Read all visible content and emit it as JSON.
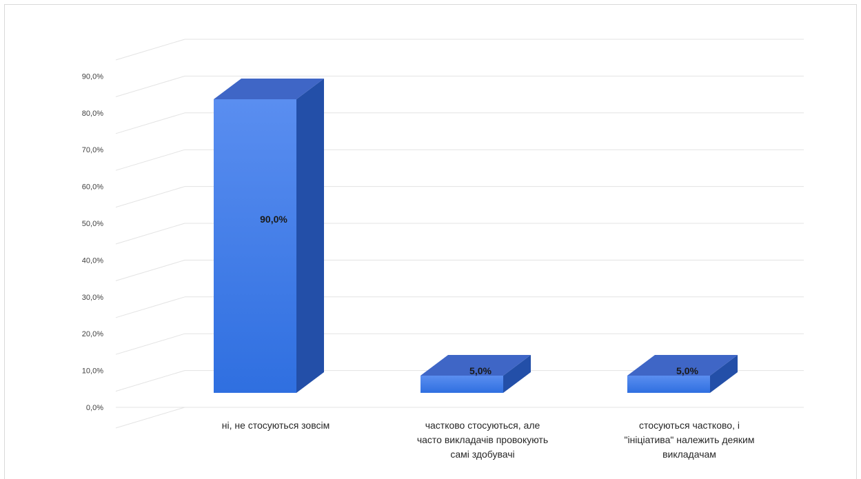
{
  "chart_data": {
    "type": "bar",
    "style": "3d-column",
    "categories": [
      [
        "ні, не стосуються зовсім"
      ],
      [
        "частково стосуються, але",
        "часто викладачів провокують",
        "самі здобувачі"
      ],
      [
        "стосуються частково, і",
        "\"ініціатива\" належить деяким",
        "викладачам"
      ]
    ],
    "values": [
      90.0,
      5.0,
      5.0
    ],
    "data_labels": [
      "90,0%",
      "5,0%",
      "5,0%"
    ],
    "y_ticks": [
      "0,0%",
      "10,0%",
      "20,0%",
      "30,0%",
      "40,0%",
      "50,0%",
      "60,0%",
      "70,0%",
      "80,0%",
      "90,0%"
    ],
    "ylim": [
      0,
      100
    ],
    "grid": true,
    "legend": "none",
    "colors": {
      "bar_front_top": "#5a8ef0",
      "bar_front_bottom": "#2f6fe0",
      "bar_top": "#3f66c6",
      "bar_side": "#234fa8",
      "grid": "#e3e3e3",
      "label": "#1a1a1a"
    }
  }
}
